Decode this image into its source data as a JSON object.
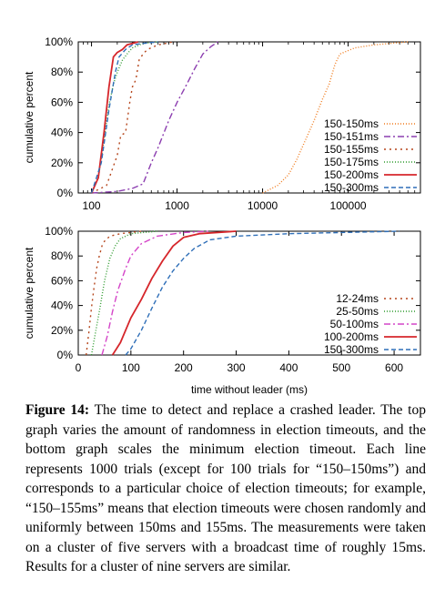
{
  "chart_data": [
    {
      "type": "line",
      "xscale": "log",
      "xlim": [
        70,
        700000
      ],
      "ylim": [
        0,
        100
      ],
      "xlabel": "",
      "ylabel": "cumulative percent",
      "xticks": [
        100,
        1000,
        10000,
        100000
      ],
      "xtick_labels": [
        "100",
        "1000",
        "10000",
        "100000"
      ],
      "yticks": [
        0,
        20,
        40,
        60,
        80,
        100
      ],
      "ytick_labels": [
        "0%",
        "20%",
        "40%",
        "60%",
        "80%",
        "100%"
      ],
      "legend_position": "bottom-right",
      "series": [
        {
          "name": "150-150ms",
          "color": "#f07c1e",
          "dash": "1,2",
          "x": [
            10000,
            15000,
            20000,
            25000,
            30000,
            40000,
            50000,
            60000,
            70000,
            80000,
            120000,
            200000,
            500000
          ],
          "y": [
            0,
            5,
            12,
            22,
            32,
            48,
            62,
            72,
            85,
            92,
            96,
            98,
            100
          ]
        },
        {
          "name": "150-151ms",
          "color": "#8c3eb0",
          "dash": "7,3,2,3",
          "x": [
            100,
            200,
            300,
            400,
            500,
            600,
            800,
            1000,
            1300,
            1600,
            2000,
            2500,
            3000
          ],
          "y": [
            0,
            1,
            3,
            6,
            20,
            30,
            48,
            60,
            72,
            82,
            92,
            97,
            100
          ]
        },
        {
          "name": "150-155ms",
          "color": "#b5451b",
          "dash": "2,4",
          "x": [
            100,
            150,
            200,
            220,
            250,
            280,
            300,
            330,
            360,
            400,
            450,
            600,
            900
          ],
          "y": [
            0,
            5,
            25,
            38,
            40,
            60,
            70,
            75,
            88,
            92,
            95,
            98,
            100
          ]
        },
        {
          "name": "150-175ms",
          "color": "#2e9b2e",
          "dash": "1,2",
          "x": [
            100,
            120,
            140,
            160,
            180,
            200,
            230,
            260,
            300,
            400,
            600
          ],
          "y": [
            0,
            10,
            35,
            58,
            72,
            80,
            88,
            92,
            96,
            99,
            100
          ]
        },
        {
          "name": "150-200ms",
          "color": "#d6262b",
          "dash": "",
          "x": [
            100,
            120,
            140,
            160,
            180,
            200,
            230,
            260,
            300,
            350
          ],
          "y": [
            0,
            10,
            40,
            70,
            90,
            93,
            95,
            98,
            99,
            100
          ]
        },
        {
          "name": "150-300ms",
          "color": "#2f6fb8",
          "dash": "5,3",
          "x": [
            100,
            130,
            160,
            190,
            210,
            250,
            300,
            400,
            600
          ],
          "y": [
            0,
            20,
            55,
            80,
            90,
            95,
            98,
            99,
            100
          ]
        }
      ]
    },
    {
      "type": "line",
      "xlim": [
        0,
        650
      ],
      "ylim": [
        0,
        100
      ],
      "xlabel": "time without leader (ms)",
      "ylabel": "cumulative percent",
      "xticks": [
        0,
        100,
        200,
        300,
        400,
        500,
        600
      ],
      "xtick_labels": [
        "0",
        "100",
        "200",
        "300",
        "400",
        "500",
        "600"
      ],
      "yticks": [
        0,
        20,
        40,
        60,
        80,
        100
      ],
      "ytick_labels": [
        "0%",
        "20%",
        "40%",
        "60%",
        "80%",
        "100%"
      ],
      "legend_position": "bottom-right",
      "series": [
        {
          "name": "12-24ms",
          "color": "#b5451b",
          "dash": "2,4",
          "x": [
            15,
            20,
            25,
            30,
            35,
            40,
            45,
            50,
            60,
            80,
            120
          ],
          "y": [
            0,
            18,
            38,
            55,
            70,
            80,
            88,
            92,
            96,
            98,
            100
          ]
        },
        {
          "name": "25-50ms",
          "color": "#2e9b2e",
          "dash": "1,2",
          "x": [
            25,
            30,
            40,
            50,
            60,
            70,
            80,
            100,
            150
          ],
          "y": [
            0,
            12,
            35,
            60,
            78,
            88,
            94,
            98,
            100
          ]
        },
        {
          "name": "50-100ms",
          "color": "#d445c8",
          "dash": "7,3,2,3",
          "x": [
            45,
            55,
            65,
            75,
            90,
            100,
            120,
            150,
            200,
            250
          ],
          "y": [
            0,
            15,
            35,
            52,
            70,
            80,
            90,
            96,
            99,
            100
          ]
        },
        {
          "name": "100-200ms",
          "color": "#d6262b",
          "dash": "",
          "x": [
            65,
            80,
            100,
            120,
            140,
            160,
            180,
            200,
            230,
            300
          ],
          "y": [
            0,
            10,
            30,
            45,
            62,
            76,
            88,
            95,
            98,
            100
          ]
        },
        {
          "name": "150-300ms",
          "color": "#2f6fb8",
          "dash": "5,3",
          "x": [
            90,
            100,
            120,
            140,
            160,
            180,
            200,
            220,
            250,
            300,
            400,
            610
          ],
          "y": [
            0,
            5,
            20,
            38,
            55,
            68,
            78,
            86,
            93,
            96,
            98,
            100
          ]
        }
      ]
    }
  ],
  "caption": {
    "label": "Figure 14:",
    "text": "The time to detect and replace a crashed leader. The top graph varies the amount of randomness in election timeouts, and the bottom graph scales the minimum election timeout. Each line represents 1000 trials (except for 100 trials for “150–150ms”) and corresponds to a particular choice of election timeouts; for example, “150–155ms” means that election timeouts were chosen randomly and uniformly between 150ms and 155ms. The measurements were taken on a cluster of five servers with a broadcast time of roughly 15ms. Results for a cluster of nine servers are similar."
  }
}
